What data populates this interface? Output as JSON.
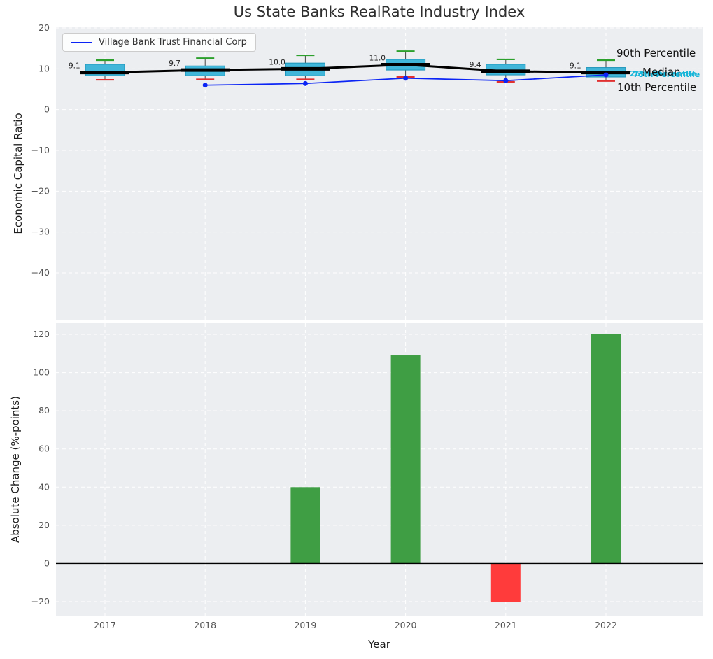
{
  "title": "Us State Banks RealRate Industry Index",
  "legend": {
    "label": "Village Bank Trust Financial Corp"
  },
  "annotations": {
    "p90": "90th Percentile",
    "p75": "75th Percentile",
    "median": "Median",
    "p25": "25th Percentile",
    "p10": "10th Percentile"
  },
  "colors": {
    "plot_bg": "#eceef1",
    "grid": "#ffffff",
    "box_fill": "#41b6d9",
    "box_edge": "#1a93b8",
    "median_line": "#000000",
    "whisker_cap_top": "#2ca02c",
    "whisker_cap_bottom": "#e03131",
    "whisker_line": "#444444",
    "company_line": "#0b24f5",
    "bar_positive": "#3f9e44",
    "bar_negative": "#ff3b3b",
    "annotation_cyan": "#15b5d8",
    "tick_label": "#555555",
    "zero_line": "#000000"
  },
  "chart_data": [
    {
      "type": "boxplot",
      "title": "Us State Banks RealRate Industry Index",
      "ylabel": "Economic Capital Ratio",
      "ylim": [
        -51.5,
        20.5
      ],
      "yticks": [
        20,
        10,
        0,
        -10,
        -20,
        -30,
        -40
      ],
      "categories": [
        2017,
        2018,
        2019,
        2020,
        2021,
        2022
      ],
      "grid": true,
      "legend_position": "upper left",
      "boxes": [
        {
          "year": 2017,
          "p10": 7.3,
          "p25": 8.3,
          "median": 9.1,
          "p75": 11.1,
          "p90": 12.1
        },
        {
          "year": 2018,
          "p10": 7.4,
          "p25": 8.3,
          "median": 9.7,
          "p75": 10.7,
          "p90": 12.6
        },
        {
          "year": 2019,
          "p10": 7.4,
          "p25": 8.3,
          "median": 10.0,
          "p75": 11.4,
          "p90": 13.3
        },
        {
          "year": 2020,
          "p10": 8.0,
          "p25": 9.7,
          "median": 11.0,
          "p75": 12.3,
          "p90": 14.3
        },
        {
          "year": 2021,
          "p10": 6.8,
          "p25": 8.5,
          "median": 9.4,
          "p75": 11.1,
          "p90": 12.3
        },
        {
          "year": 2022,
          "p10": 7.0,
          "p25": 8.0,
          "median": 9.1,
          "p75": 10.3,
          "p90": 12.1
        }
      ],
      "median_labels": [
        "9.1",
        "9.7",
        "10.0",
        "11.0",
        "9.4",
        "9.1"
      ],
      "series": [
        {
          "name": "Village Bank Trust Financial Corp",
          "x": [
            2018,
            2019,
            2020,
            2021,
            2022
          ],
          "y": [
            6.0,
            6.4,
            7.7,
            7.1,
            8.5
          ]
        }
      ]
    },
    {
      "type": "bar",
      "xlabel": "Year",
      "ylabel": "Absolute Change (%-points)",
      "ylim": [
        -27,
        126
      ],
      "yticks": [
        120,
        100,
        80,
        60,
        40,
        20,
        0,
        -20
      ],
      "categories": [
        2017,
        2018,
        2019,
        2020,
        2021,
        2022
      ],
      "values": [
        0,
        0,
        40,
        109,
        -20,
        120
      ]
    }
  ]
}
